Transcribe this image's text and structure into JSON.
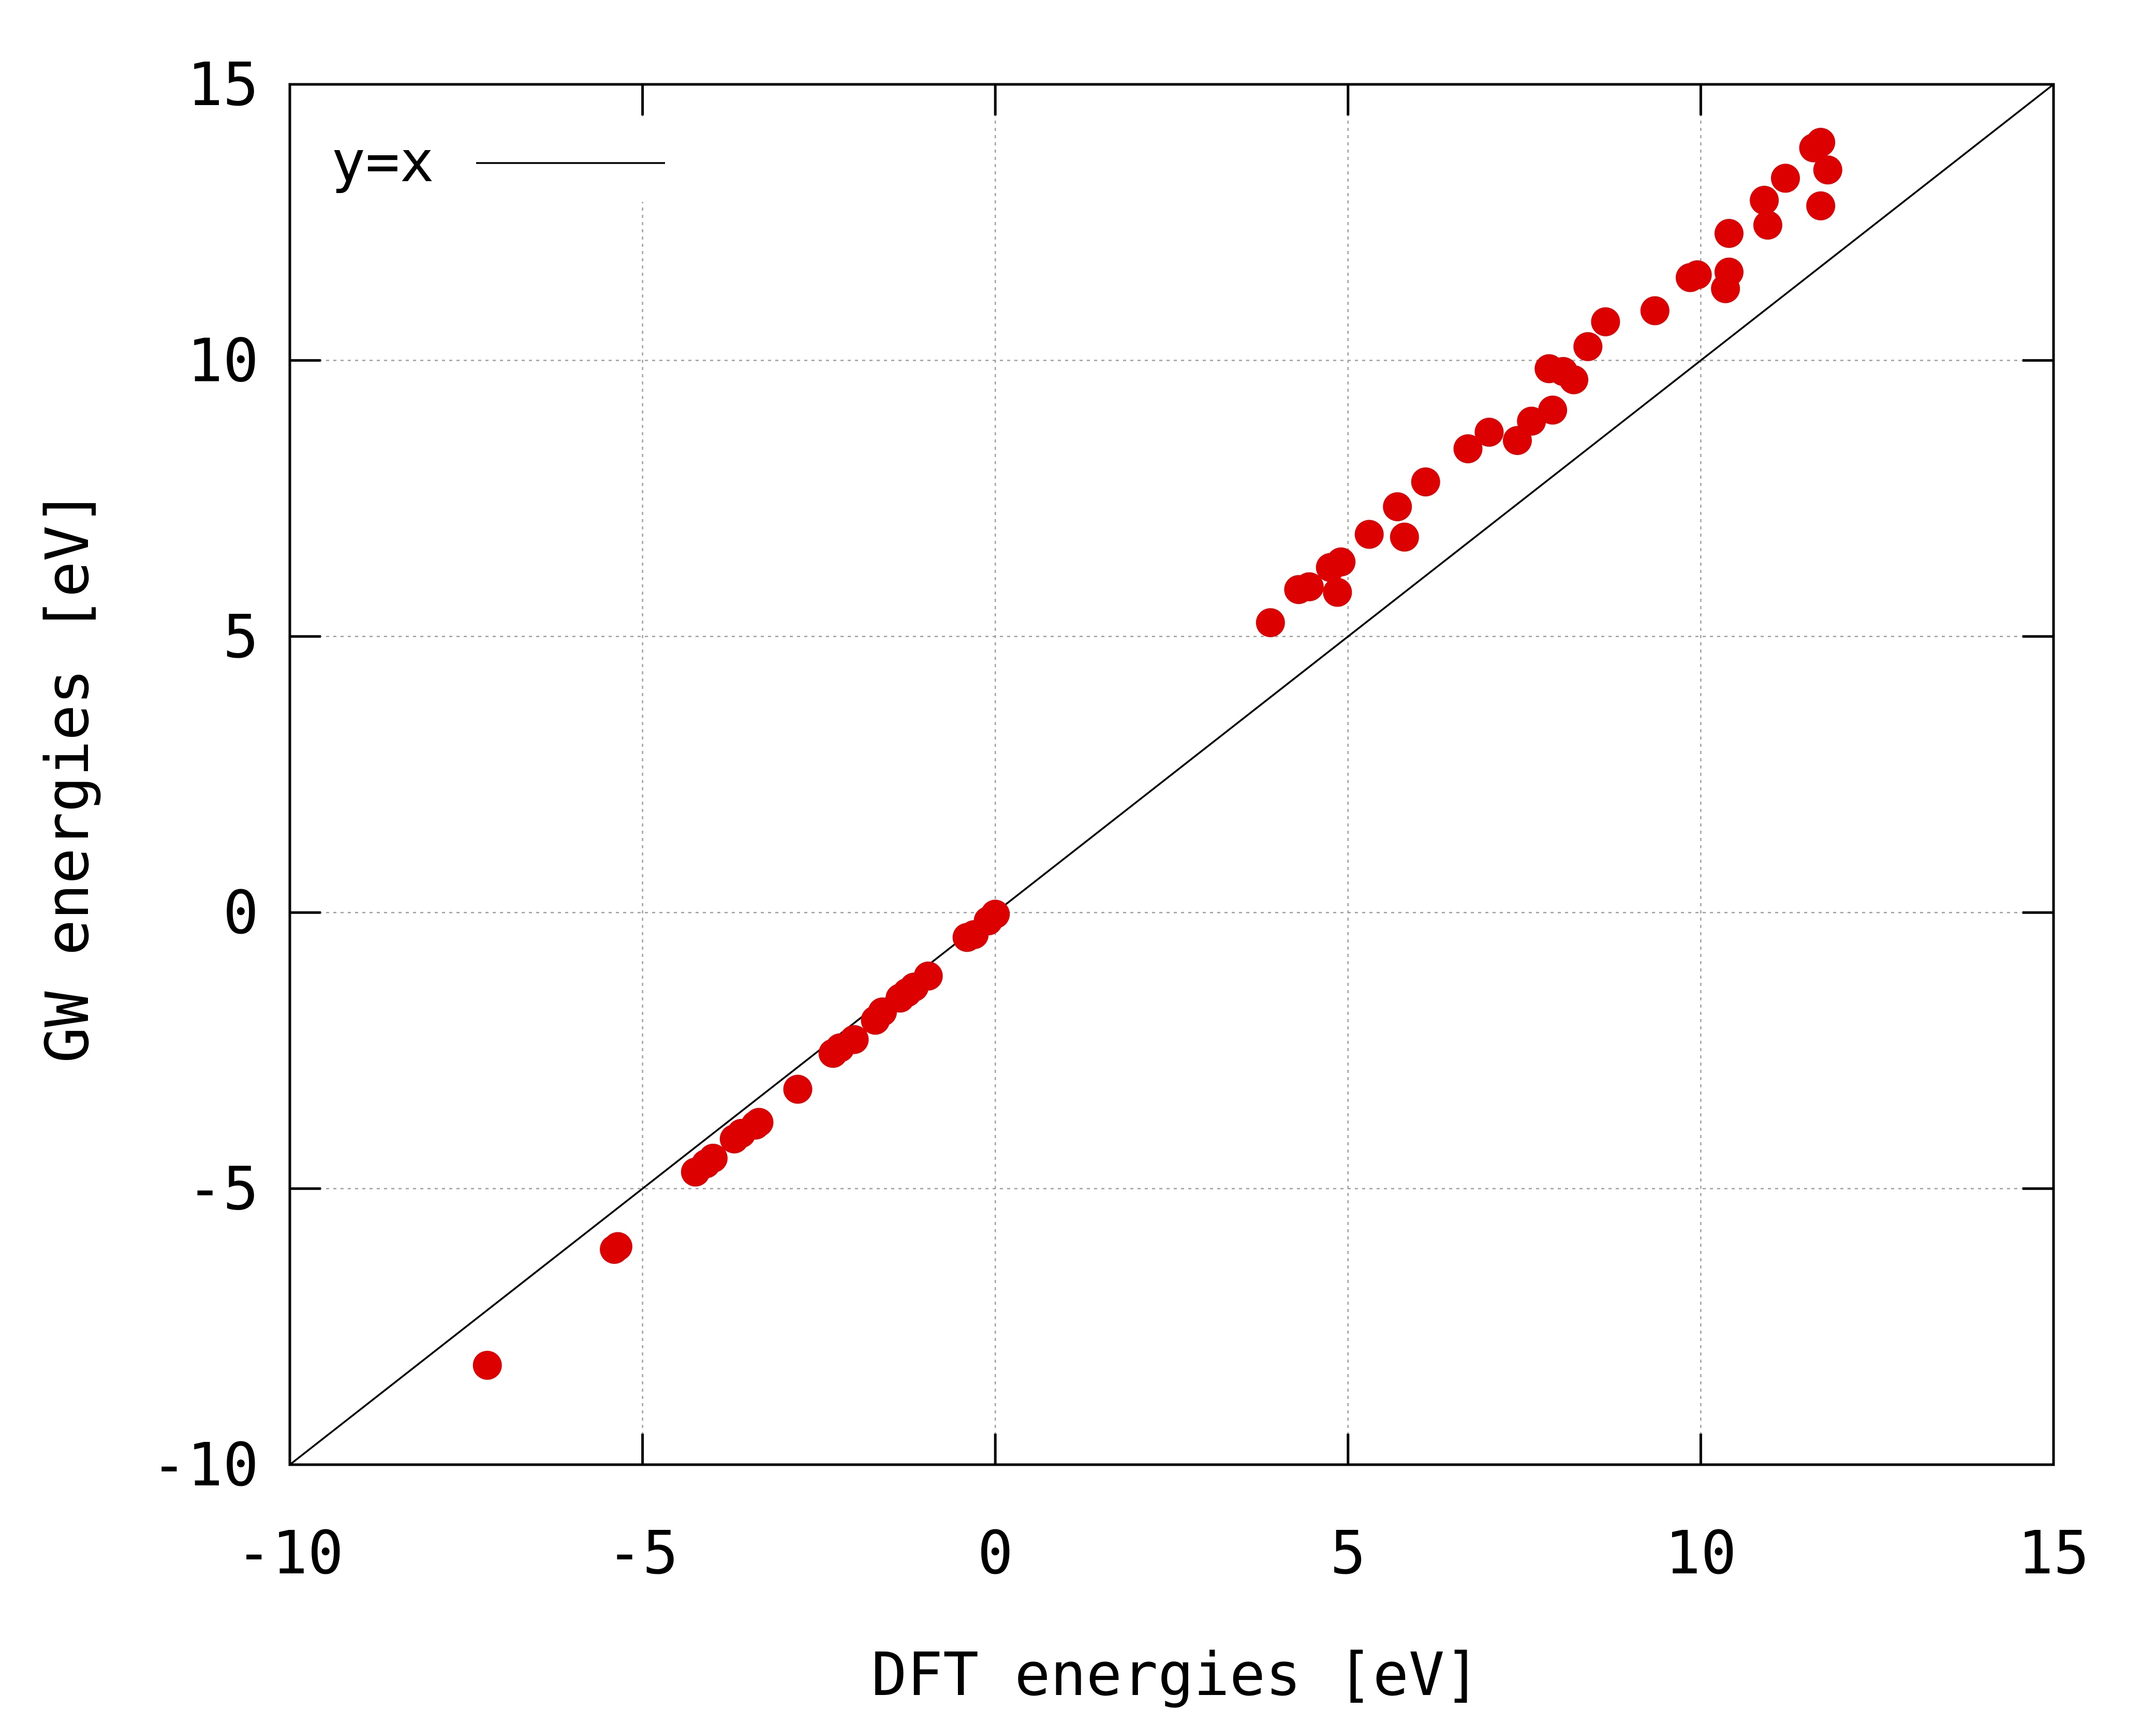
{
  "chart_data": {
    "type": "scatter",
    "title": "",
    "xlabel": "DFT energies [eV]",
    "ylabel": "GW energies [eV]",
    "xlim": [
      -10,
      15
    ],
    "ylim": [
      -10,
      15
    ],
    "xticks": [
      -10,
      -5,
      0,
      5,
      10,
      15
    ],
    "yticks": [
      -10,
      -5,
      0,
      5,
      10,
      15
    ],
    "grid": true,
    "legend": {
      "position": "top-left",
      "entries": [
        {
          "label": "y=x",
          "style": "line",
          "color": "#000000"
        }
      ]
    },
    "reference_line": {
      "name": "y=x",
      "from": [
        -10,
        -10
      ],
      "to": [
        15,
        15
      ]
    },
    "series": [
      {
        "name": "GW vs DFT",
        "color": "#dd0000",
        "marker": "circle",
        "points": [
          [
            -7.2,
            -8.2
          ],
          [
            -5.4,
            -6.1
          ],
          [
            -5.35,
            -6.05
          ],
          [
            -4.25,
            -4.7
          ],
          [
            -4.1,
            -4.55
          ],
          [
            -4.0,
            -4.45
          ],
          [
            -3.7,
            -4.1
          ],
          [
            -3.6,
            -4.0
          ],
          [
            -3.4,
            -3.85
          ],
          [
            -3.35,
            -3.8
          ],
          [
            -2.8,
            -3.2
          ],
          [
            -2.3,
            -2.55
          ],
          [
            -2.2,
            -2.45
          ],
          [
            -2.0,
            -2.3
          ],
          [
            -1.7,
            -1.95
          ],
          [
            -1.6,
            -1.8
          ],
          [
            -1.35,
            -1.55
          ],
          [
            -1.25,
            -1.45
          ],
          [
            -1.15,
            -1.35
          ],
          [
            -0.95,
            -1.15
          ],
          [
            -0.4,
            -0.45
          ],
          [
            -0.3,
            -0.4
          ],
          [
            -0.1,
            -0.15
          ],
          [
            0.0,
            -0.03
          ],
          [
            3.9,
            5.25
          ],
          [
            4.3,
            5.85
          ],
          [
            4.45,
            5.9
          ],
          [
            4.75,
            6.25
          ],
          [
            4.9,
            6.35
          ],
          [
            4.85,
            5.8
          ],
          [
            5.3,
            6.85
          ],
          [
            5.7,
            7.35
          ],
          [
            5.8,
            6.8
          ],
          [
            6.1,
            7.8
          ],
          [
            6.7,
            8.4
          ],
          [
            7.0,
            8.7
          ],
          [
            7.4,
            8.55
          ],
          [
            7.6,
            8.9
          ],
          [
            7.85,
            9.85
          ],
          [
            8.05,
            9.8
          ],
          [
            7.9,
            9.1
          ],
          [
            8.2,
            9.65
          ],
          [
            8.4,
            10.25
          ],
          [
            8.65,
            10.7
          ],
          [
            9.35,
            10.9
          ],
          [
            9.85,
            11.5
          ],
          [
            9.95,
            11.55
          ],
          [
            10.35,
            11.3
          ],
          [
            10.4,
            11.6
          ],
          [
            10.4,
            12.3
          ],
          [
            10.9,
            12.9
          ],
          [
            10.95,
            12.45
          ],
          [
            11.2,
            13.3
          ],
          [
            11.6,
            13.85
          ],
          [
            11.7,
            13.95
          ],
          [
            11.7,
            12.8
          ],
          [
            11.8,
            13.45
          ]
        ]
      }
    ]
  }
}
